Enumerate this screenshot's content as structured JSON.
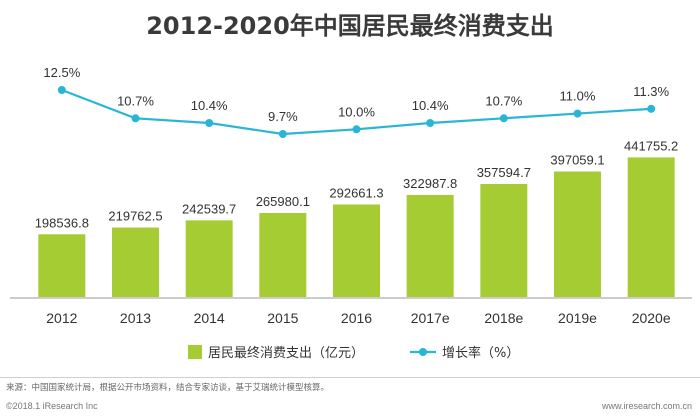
{
  "title": "2012-2020年中国居民最终消费支出",
  "chart_data": {
    "type": "bar+line",
    "categories": [
      "2012",
      "2013",
      "2014",
      "2015",
      "2016",
      "2017e",
      "2018e",
      "2019e",
      "2020e"
    ],
    "bar_series": {
      "name": "居民最终消费支出（亿元）",
      "values": [
        198536.8,
        219762.5,
        242539.7,
        265980.1,
        292661.3,
        322987.8,
        357594.7,
        397059.1,
        441755.2
      ],
      "labels": [
        "198536.8",
        "219762.5",
        "242539.7",
        "265980.1",
        "292661.3",
        "322987.8",
        "357594.7",
        "397059.1",
        "441755.2"
      ],
      "color": "#a6cc33"
    },
    "line_series": {
      "name": "增长率（%）",
      "values": [
        12.5,
        10.7,
        10.4,
        9.7,
        10.0,
        10.4,
        10.7,
        11.0,
        11.3
      ],
      "labels": [
        "12.5%",
        "10.7%",
        "10.4%",
        "9.7%",
        "10.0%",
        "10.4%",
        "10.7%",
        "11.0%",
        "11.3%"
      ],
      "color": "#29b6d6"
    },
    "legend_position": "bottom"
  },
  "footer": {
    "source": "来源：中国国家统计局，根据公开市场资料，结合专家访谈，基于艾瑞统计模型核算。",
    "copyright": "©2018.1 iResearch Inc",
    "website": "www.iresearch.com.cn"
  }
}
